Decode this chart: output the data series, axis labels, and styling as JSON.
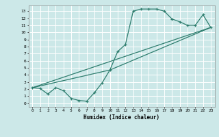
{
  "xlabel": "Humidex (Indice chaleur)",
  "ylabel": "",
  "xlim": [
    -0.5,
    23.5
  ],
  "ylim": [
    -0.5,
    13.8
  ],
  "xticks": [
    0,
    1,
    2,
    3,
    4,
    5,
    6,
    7,
    8,
    9,
    10,
    11,
    12,
    13,
    14,
    15,
    16,
    17,
    18,
    19,
    20,
    21,
    22,
    23
  ],
  "yticks": [
    0,
    1,
    2,
    3,
    4,
    5,
    6,
    7,
    8,
    9,
    10,
    11,
    12,
    13
  ],
  "line_color": "#2e7d6e",
  "bg_color": "#cce8e8",
  "grid_color": "#ffffff",
  "line1_x": [
    0,
    1,
    2,
    3,
    4,
    5,
    6,
    7,
    8,
    9,
    10,
    11,
    12,
    13,
    14,
    15,
    16,
    17,
    18,
    19,
    20,
    21,
    22,
    23
  ],
  "line1_y": [
    2.2,
    2.1,
    1.3,
    2.2,
    1.8,
    0.7,
    0.4,
    0.3,
    1.5,
    2.9,
    4.7,
    7.3,
    8.3,
    13.0,
    13.3,
    13.3,
    13.3,
    13.0,
    11.9,
    11.5,
    11.0,
    11.0,
    12.5,
    10.7
  ],
  "line2_x": [
    0,
    23
  ],
  "line2_y": [
    2.2,
    10.7
  ],
  "line3_x": [
    0,
    10,
    23
  ],
  "line3_y": [
    2.2,
    4.7,
    10.7
  ]
}
